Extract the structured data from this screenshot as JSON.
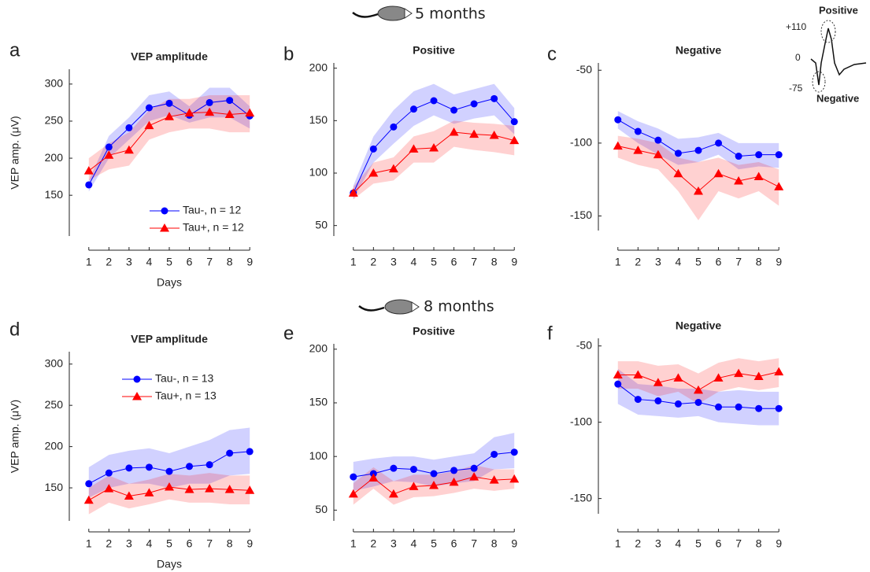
{
  "headers": [
    "5 months",
    "8 months"
  ],
  "inset": {
    "top_label": "Positive",
    "bottom_label": "Negative",
    "ticks": [
      "+110",
      "0",
      "-75"
    ]
  },
  "chart_data": [
    {
      "type": "line",
      "panel_label": "a",
      "title": "VEP amplitude",
      "xlabel": "Days",
      "ylabel": "VEP amp. (μV)",
      "x": [
        1,
        2,
        3,
        4,
        5,
        6,
        7,
        8,
        9
      ],
      "xlim": [
        0.5,
        9.5
      ],
      "xticks": [
        1,
        2,
        3,
        4,
        5,
        6,
        7,
        8,
        9
      ],
      "ylim": [
        95,
        320
      ],
      "yticks": [
        150,
        200,
        250,
        300
      ],
      "legend": "lower right",
      "series": [
        {
          "name": "Tau-, n = 12",
          "color": "#0000ff",
          "marker": "circle",
          "values": [
            164,
            215,
            241,
            268,
            274,
            258,
            275,
            278,
            257
          ],
          "upper": [
            170,
            230,
            255,
            285,
            290,
            270,
            295,
            295,
            270
          ],
          "lower": [
            155,
            200,
            225,
            250,
            258,
            248,
            255,
            255,
            240
          ]
        },
        {
          "name": "Tau+, n = 12",
          "color": "#ff0000",
          "marker": "triangle",
          "values": [
            183,
            204,
            211,
            244,
            256,
            261,
            262,
            259,
            261
          ],
          "upper": [
            200,
            220,
            235,
            265,
            280,
            280,
            285,
            285,
            285
          ],
          "lower": [
            170,
            185,
            190,
            225,
            235,
            240,
            240,
            235,
            235
          ]
        }
      ]
    },
    {
      "type": "line",
      "panel_label": "b",
      "title": "Positive",
      "x": [
        1,
        2,
        3,
        4,
        5,
        6,
        7,
        8,
        9
      ],
      "xlim": [
        0.5,
        9.5
      ],
      "xticks": [
        1,
        2,
        3,
        4,
        5,
        6,
        7,
        8,
        9
      ],
      "ylim": [
        40,
        205
      ],
      "yticks": [
        50,
        100,
        150,
        200
      ],
      "series": [
        {
          "color": "#0000ff",
          "marker": "circle",
          "values": [
            81,
            123,
            144,
            161,
            169,
            160,
            166,
            171,
            149
          ],
          "upper": [
            88,
            135,
            160,
            178,
            185,
            175,
            180,
            185,
            162
          ],
          "lower": [
            75,
            110,
            128,
            145,
            155,
            147,
            152,
            155,
            137
          ]
        },
        {
          "color": "#ff0000",
          "marker": "triangle",
          "values": [
            81,
            100,
            104,
            123,
            124,
            139,
            137,
            136,
            131
          ],
          "upper": [
            87,
            110,
            115,
            135,
            140,
            150,
            148,
            147,
            145
          ],
          "lower": [
            75,
            90,
            93,
            110,
            110,
            125,
            122,
            120,
            117
          ]
        }
      ]
    },
    {
      "type": "line",
      "panel_label": "c",
      "title": "Negative",
      "x": [
        1,
        2,
        3,
        4,
        5,
        6,
        7,
        8,
        9
      ],
      "xlim": [
        0.5,
        9.5
      ],
      "xticks": [
        1,
        2,
        3,
        4,
        5,
        6,
        7,
        8,
        9
      ],
      "ylim": [
        -160,
        -45
      ],
      "yticks": [
        -150,
        -100,
        -50
      ],
      "series": [
        {
          "color": "#0000ff",
          "marker": "circle",
          "values": [
            -84,
            -92,
            -98,
            -107,
            -105,
            -100,
            -109,
            -108,
            -108
          ],
          "upper": [
            -78,
            -85,
            -90,
            -97,
            -96,
            -93,
            -100,
            -100,
            -100
          ],
          "lower": [
            -90,
            -100,
            -108,
            -115,
            -113,
            -108,
            -118,
            -116,
            -117
          ]
        },
        {
          "color": "#ff0000",
          "marker": "triangle",
          "values": [
            -102,
            -105,
            -108,
            -121,
            -133,
            -121,
            -126,
            -123,
            -130
          ],
          "upper": [
            -95,
            -97,
            -100,
            -110,
            -113,
            -110,
            -115,
            -113,
            -118
          ],
          "lower": [
            -110,
            -115,
            -118,
            -133,
            -153,
            -133,
            -138,
            -133,
            -143
          ]
        }
      ]
    },
    {
      "type": "line",
      "panel_label": "d",
      "title": "VEP amplitude",
      "xlabel": "Days",
      "ylabel": "VEP amp. (μV)",
      "x": [
        1,
        2,
        3,
        4,
        5,
        6,
        7,
        8,
        9
      ],
      "xlim": [
        0.5,
        9.5
      ],
      "xticks": [
        1,
        2,
        3,
        4,
        5,
        6,
        7,
        8,
        9
      ],
      "ylim": [
        110,
        315
      ],
      "yticks": [
        150,
        200,
        250,
        300
      ],
      "legend": "upper left",
      "series": [
        {
          "name": "Tau-, n = 13",
          "color": "#0000ff",
          "marker": "circle",
          "values": [
            155,
            168,
            174,
            175,
            170,
            176,
            178,
            192,
            194
          ],
          "upper": [
            175,
            190,
            195,
            198,
            192,
            200,
            208,
            220,
            223
          ],
          "lower": [
            138,
            150,
            155,
            155,
            150,
            155,
            155,
            165,
            167
          ]
        },
        {
          "name": "Tau+, n = 13",
          "color": "#ff0000",
          "marker": "triangle",
          "values": [
            135,
            149,
            140,
            144,
            151,
            148,
            149,
            148,
            147
          ],
          "upper": [
            150,
            165,
            155,
            160,
            167,
            165,
            168,
            165,
            165
          ],
          "lower": [
            118,
            132,
            125,
            130,
            136,
            132,
            132,
            130,
            130
          ]
        }
      ]
    },
    {
      "type": "line",
      "panel_label": "e",
      "title": "Positive",
      "x": [
        1,
        2,
        3,
        4,
        5,
        6,
        7,
        8,
        9
      ],
      "xlim": [
        0.5,
        9.5
      ],
      "xticks": [
        1,
        2,
        3,
        4,
        5,
        6,
        7,
        8,
        9
      ],
      "ylim": [
        40,
        205
      ],
      "yticks": [
        50,
        100,
        150,
        200
      ],
      "series": [
        {
          "color": "#0000ff",
          "marker": "circle",
          "values": [
            81,
            84,
            89,
            88,
            84,
            87,
            89,
            102,
            104
          ],
          "upper": [
            95,
            98,
            100,
            100,
            97,
            100,
            103,
            118,
            122
          ],
          "lower": [
            68,
            72,
            77,
            76,
            72,
            75,
            77,
            88,
            89
          ]
        },
        {
          "color": "#ff0000",
          "marker": "triangle",
          "values": [
            65,
            80,
            65,
            72,
            73,
            76,
            81,
            78,
            79
          ],
          "upper": [
            75,
            90,
            77,
            83,
            83,
            86,
            92,
            88,
            88
          ],
          "lower": [
            55,
            70,
            55,
            62,
            63,
            66,
            70,
            68,
            70
          ]
        }
      ]
    },
    {
      "type": "line",
      "panel_label": "f",
      "title": "Negative",
      "x": [
        1,
        2,
        3,
        4,
        5,
        6,
        7,
        8,
        9
      ],
      "xlim": [
        0.5,
        9.5
      ],
      "xticks": [
        1,
        2,
        3,
        4,
        5,
        6,
        7,
        8,
        9
      ],
      "ylim": [
        -160,
        -45
      ],
      "yticks": [
        -150,
        -100,
        -50
      ],
      "series": [
        {
          "color": "#0000ff",
          "marker": "circle",
          "values": [
            -75,
            -85,
            -86,
            -88,
            -87,
            -90,
            -90,
            -91,
            -91
          ],
          "upper": [
            -65,
            -75,
            -76,
            -78,
            -78,
            -80,
            -79,
            -80,
            -80
          ],
          "lower": [
            -88,
            -95,
            -96,
            -97,
            -96,
            -100,
            -101,
            -102,
            -102
          ]
        },
        {
          "color": "#ff0000",
          "marker": "triangle",
          "values": [
            -69,
            -69,
            -74,
            -71,
            -79,
            -71,
            -68,
            -70,
            -67
          ],
          "upper": [
            -60,
            -60,
            -63,
            -62,
            -68,
            -61,
            -58,
            -60,
            -58
          ],
          "lower": [
            -78,
            -78,
            -83,
            -80,
            -88,
            -80,
            -77,
            -79,
            -77
          ]
        }
      ]
    }
  ]
}
